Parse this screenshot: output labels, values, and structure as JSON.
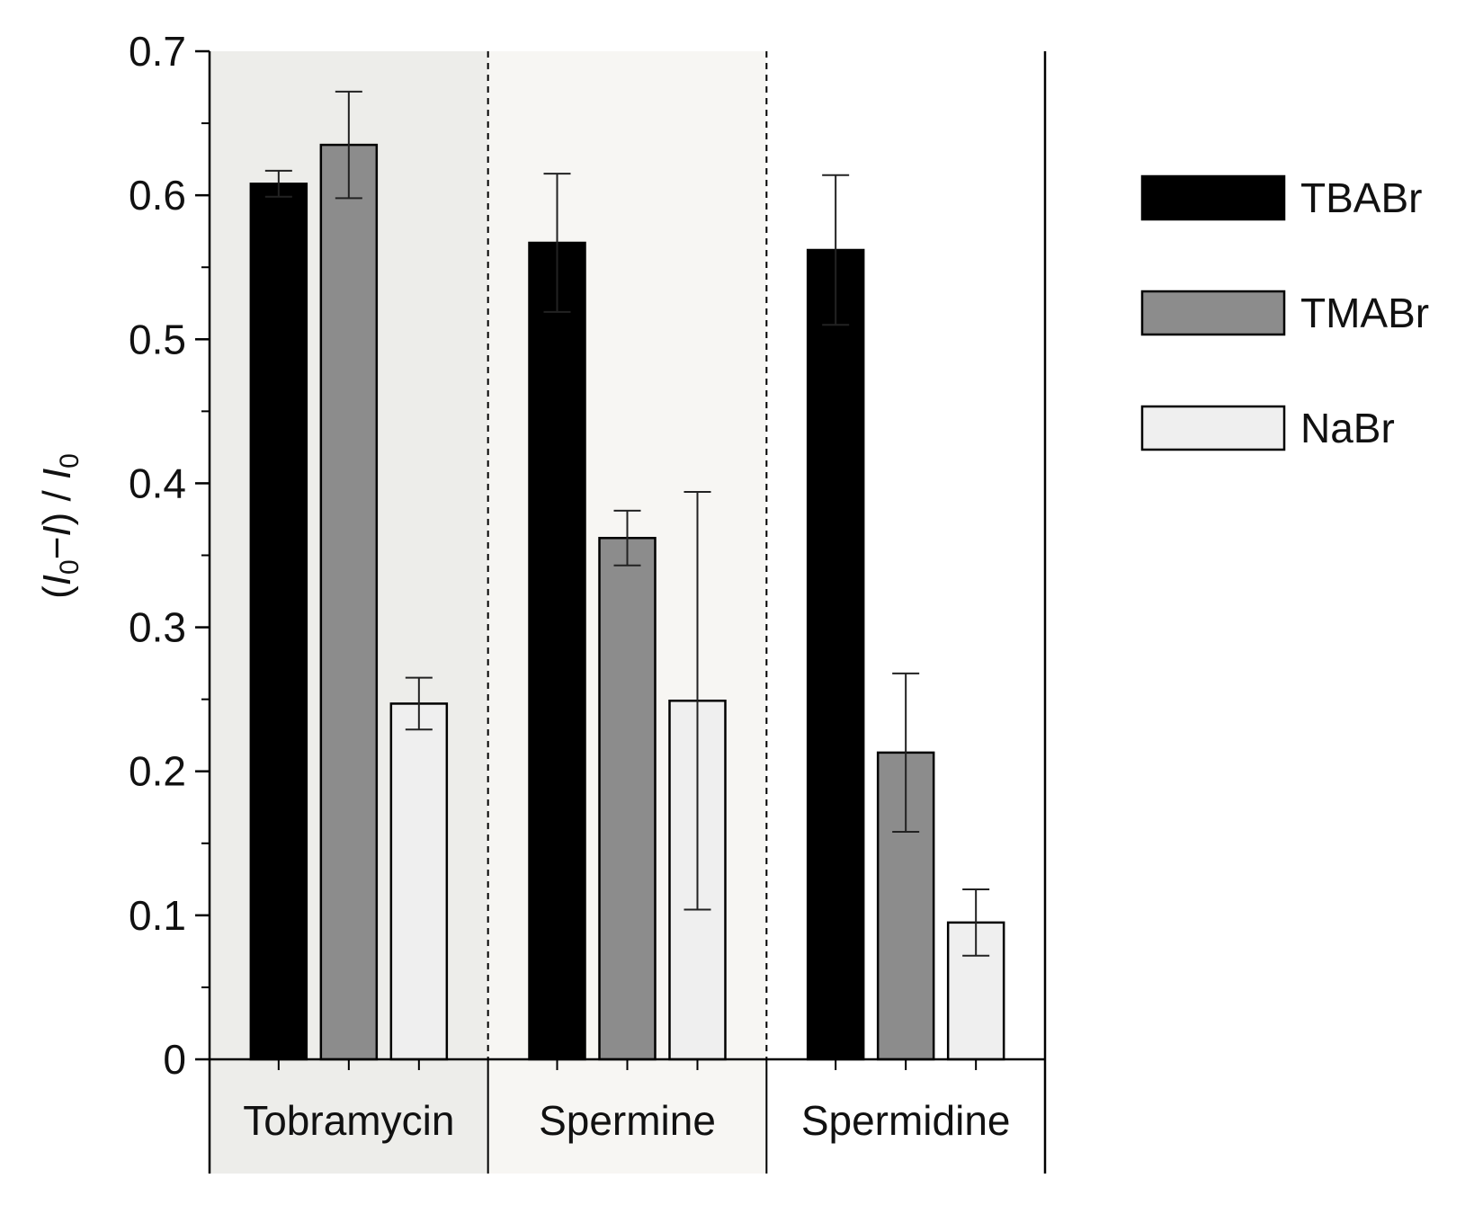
{
  "chart_data": {
    "type": "bar",
    "title": "",
    "xlabel": "",
    "ylabel": {
      "open": "(",
      "i0": "I",
      "sub0": "0",
      "minus": "−",
      "i": "I",
      "close": ") / ",
      "i0b": "I",
      "sub0b": "0"
    },
    "ylim": [
      0,
      0.7
    ],
    "yticks": [
      "0",
      "0.1",
      "0.2",
      "0.3",
      "0.4",
      "0.5",
      "0.6",
      "0.7"
    ],
    "grid": false,
    "legend_position": "right",
    "categories": [
      "Tobramycin",
      "Spermine",
      "Spermidine"
    ],
    "series": [
      {
        "name": "TBABr",
        "color": "#000000",
        "values": [
          0.608,
          0.567,
          0.562
        ],
        "errors": [
          0.009,
          0.048,
          0.052
        ]
      },
      {
        "name": "TMABr",
        "color": "#8c8c8c",
        "values": [
          0.635,
          0.362,
          0.213
        ],
        "errors": [
          0.037,
          0.019,
          0.055
        ]
      },
      {
        "name": "NaBr",
        "color": "#efefef",
        "values": [
          0.247,
          0.249,
          0.095
        ],
        "errors": [
          0.018,
          0.145,
          0.023
        ]
      }
    ],
    "panel_backgrounds": [
      "#ededea",
      "#f7f6f3",
      "#ffffff"
    ]
  }
}
